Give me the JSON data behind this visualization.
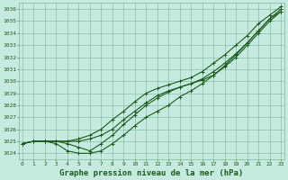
{
  "title": "Graphe pression niveau de la mer (hPa)",
  "bg_color": "#c6eae0",
  "grid_color": "#7ab89a",
  "line_color": "#1a5c1a",
  "x_ticks": [
    0,
    1,
    2,
    3,
    4,
    5,
    6,
    7,
    8,
    9,
    10,
    11,
    12,
    13,
    14,
    15,
    16,
    17,
    18,
    19,
    20,
    21,
    22,
    23
  ],
  "ylim": [
    1023.5,
    1036.5
  ],
  "xlim": [
    -0.3,
    23.3
  ],
  "yticks": [
    1024,
    1025,
    1026,
    1027,
    1028,
    1029,
    1030,
    1031,
    1032,
    1033,
    1034,
    1035,
    1036
  ],
  "series": [
    [
      1024.8,
      1025.0,
      1025.0,
      1025.0,
      1025.0,
      1025.0,
      1025.2,
      1025.5,
      1026.0,
      1026.8,
      1027.5,
      1028.2,
      1028.8,
      1029.2,
      1029.5,
      1029.8,
      1030.2,
      1030.8,
      1031.5,
      1032.3,
      1033.2,
      1034.2,
      1035.2,
      1035.8
    ],
    [
      1024.8,
      1025.0,
      1025.0,
      1025.0,
      1024.8,
      1024.5,
      1024.2,
      1024.8,
      1025.5,
      1026.4,
      1027.2,
      1028.0,
      1028.6,
      1029.1,
      1029.5,
      1029.8,
      1030.1,
      1030.5,
      1031.2,
      1032.0,
      1033.0,
      1034.0,
      1035.0,
      1035.8
    ],
    [
      1024.8,
      1025.0,
      1025.0,
      1024.8,
      1024.2,
      1024.0,
      1024.0,
      1024.2,
      1024.8,
      1025.5,
      1026.3,
      1027.0,
      1027.5,
      1028.0,
      1028.7,
      1029.2,
      1029.8,
      1030.5,
      1031.3,
      1032.2,
      1033.2,
      1034.2,
      1035.2,
      1036.0
    ],
    [
      1024.8,
      1025.0,
      1025.0,
      1025.0,
      1025.0,
      1025.2,
      1025.5,
      1026.0,
      1026.8,
      1027.5,
      1028.3,
      1029.0,
      1029.4,
      1029.7,
      1030.0,
      1030.3,
      1030.8,
      1031.5,
      1032.2,
      1033.0,
      1033.8,
      1034.8,
      1035.5,
      1036.2
    ]
  ],
  "marker_size": 2.5,
  "line_width": 0.8,
  "title_fontsize": 6.5,
  "tick_fontsize": 4.5
}
